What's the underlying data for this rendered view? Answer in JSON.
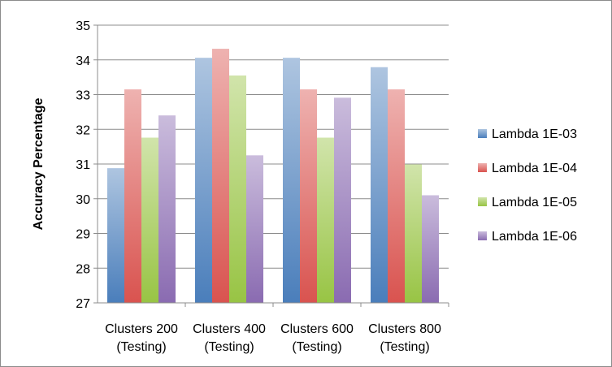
{
  "chart_data": {
    "type": "bar",
    "title": "",
    "xlabel": "",
    "ylabel": "Accuracy Percentage",
    "ylim": [
      27,
      35
    ],
    "yticks": [
      27,
      28,
      29,
      30,
      31,
      32,
      33,
      34,
      35
    ],
    "grid": true,
    "legend_position": "right",
    "categories": [
      [
        "Clusters 200",
        "(Testing)"
      ],
      [
        "Clusters 400",
        "(Testing)"
      ],
      [
        "Clusters 600",
        "(Testing)"
      ],
      [
        "Clusters 800",
        "(Testing)"
      ]
    ],
    "series": [
      {
        "name": "Lambda 1E-03",
        "color": "#4a7ebb",
        "values": [
          30.88,
          34.06,
          34.06,
          33.79
        ]
      },
      {
        "name": "Lambda 1E-04",
        "color": "#d9534f",
        "values": [
          33.15,
          34.32,
          33.15,
          33.15
        ]
      },
      {
        "name": "Lambda 1E-05",
        "color": "#98c444",
        "values": [
          31.76,
          33.55,
          31.76,
          30.99
        ]
      },
      {
        "name": "Lambda 1E-06",
        "color": "#8a6bb1",
        "values": [
          32.4,
          31.25,
          32.91,
          30.1
        ]
      }
    ]
  }
}
